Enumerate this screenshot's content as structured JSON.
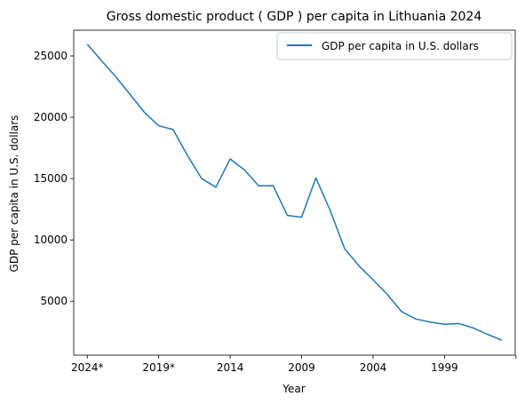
{
  "chart_data": {
    "type": "line",
    "title": "Gross domestic product ( GDP ) per capita in Lithuania 2024",
    "xlabel": "Year",
    "ylabel": "GDP per capita in U.S. dollars",
    "x": [
      "2024*",
      "2023*",
      "2022*",
      "2021*",
      "2020*",
      "2019*",
      "2018",
      "2017",
      "2016",
      "2015",
      "2014",
      "2013",
      "2012",
      "2011",
      "2010",
      "2009",
      "2008",
      "2007",
      "2006",
      "2005",
      "2004",
      "2003",
      "2002",
      "2001",
      "2000",
      "1999",
      "1998",
      "1997",
      "1996",
      "1995"
    ],
    "x_tick_labels": [
      "2024*",
      "2019*",
      "2014",
      "2009",
      "2004",
      "1999",
      ""
    ],
    "y_ticks": [
      5000,
      10000,
      15000,
      20000,
      25000
    ],
    "ylim": [
      600,
      27100
    ],
    "grid": false,
    "legend_position": "top-right",
    "series": [
      {
        "name": "GDP per capita in U.S. dollars",
        "color": "#1f77b4",
        "values": [
          25950,
          24600,
          23300,
          21850,
          20400,
          19300,
          19000,
          16900,
          15000,
          14300,
          16600,
          15700,
          14400,
          14420,
          12000,
          11850,
          15050,
          12400,
          9300,
          7900,
          6750,
          5550,
          4150,
          3550,
          3300,
          3120,
          3180,
          2820,
          2300,
          1830
        ]
      }
    ]
  }
}
